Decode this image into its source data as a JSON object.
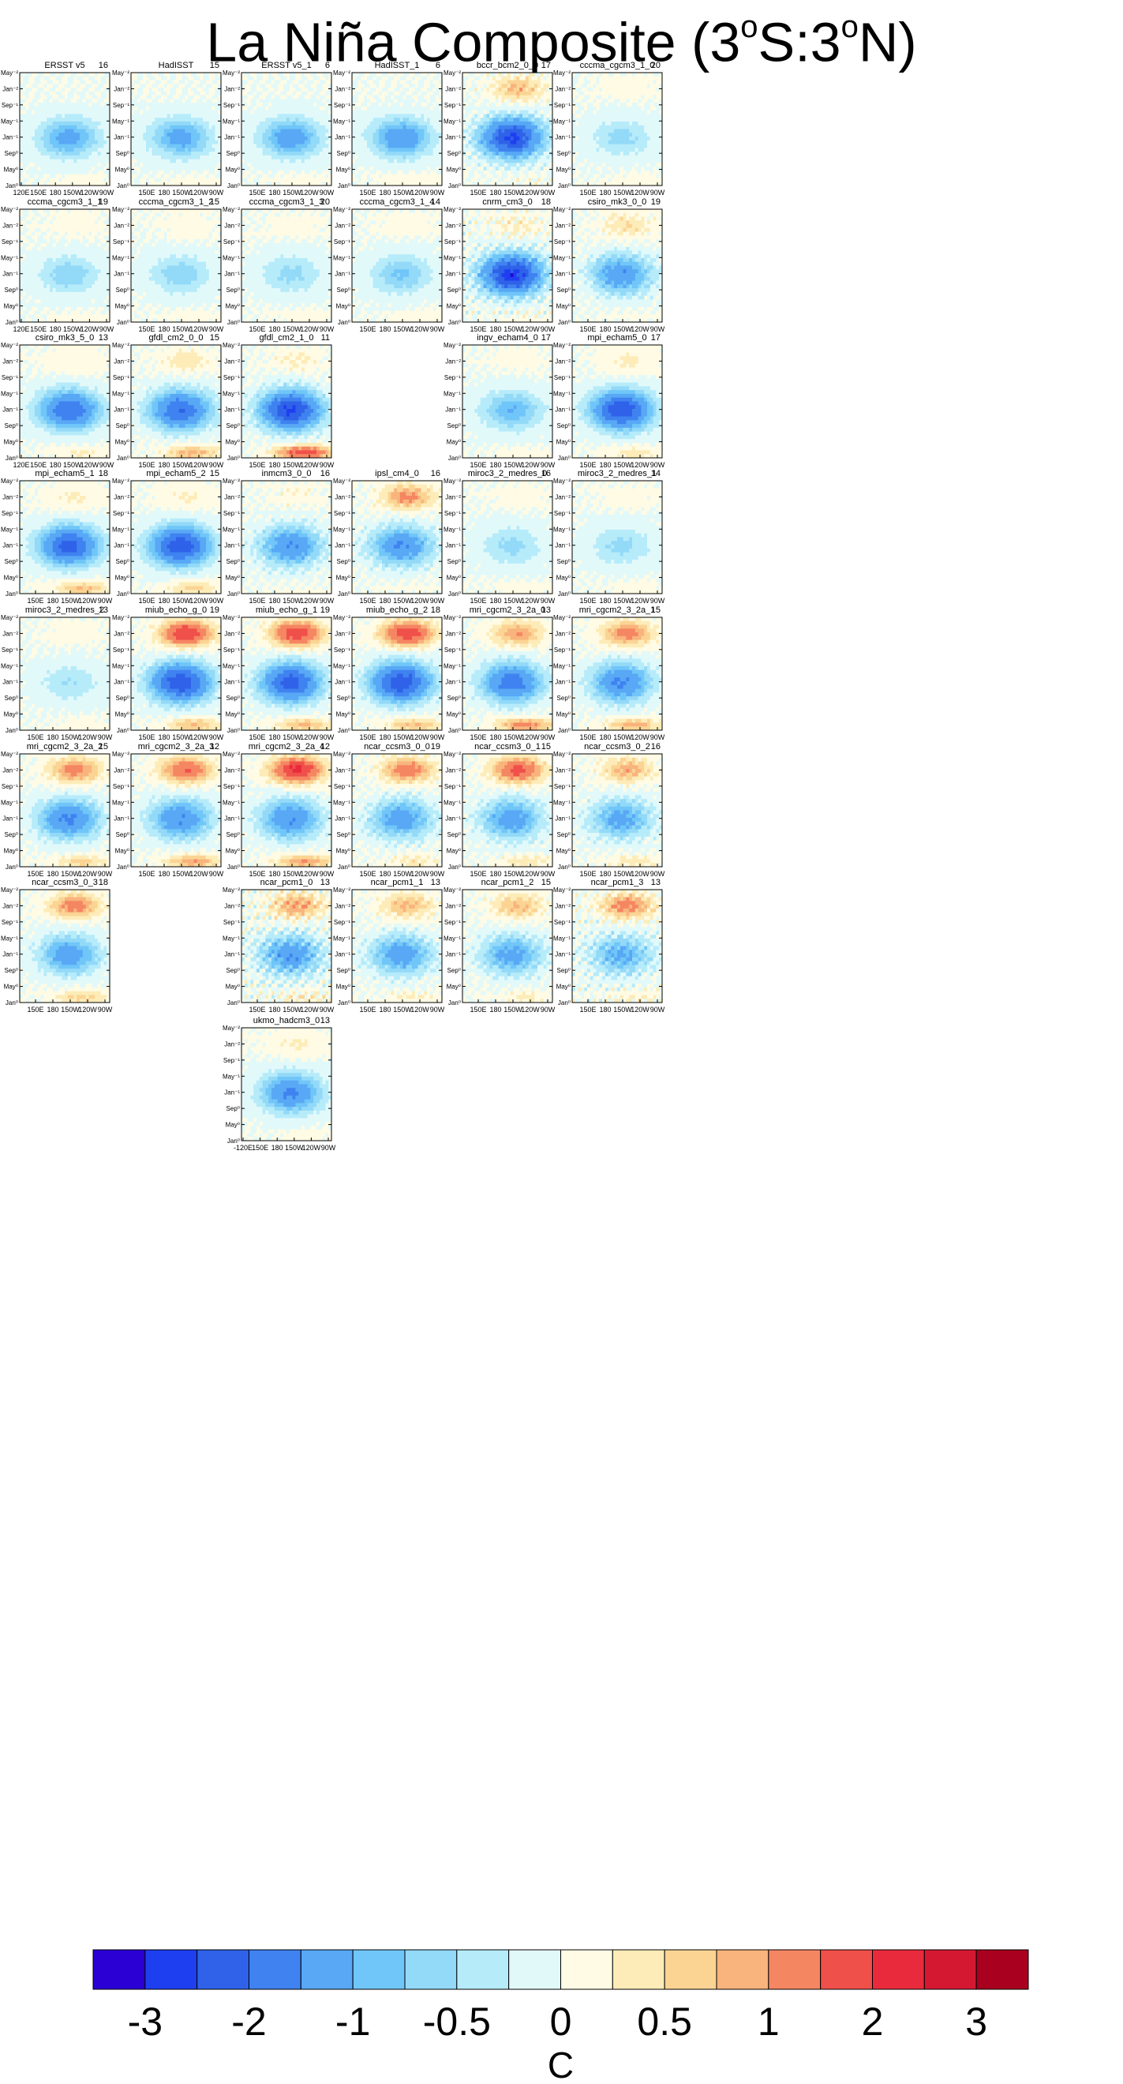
{
  "title_main": "La Niña Composite (3",
  "title_s": "S:3",
  "title_n": "N)",
  "title_deg": "o",
  "units": "C",
  "colors": [
    "#2a00d4",
    "#1e3ff0",
    "#2f62e8",
    "#3f82f0",
    "#58a8f5",
    "#70c6f8",
    "#93d9f8",
    "#b6ebfa",
    "#e2f9fa",
    "#fffbe4",
    "#fdecb8",
    "#fbd494",
    "#f8b47c",
    "#f58662",
    "#f0504a",
    "#e82a3c",
    "#d41832",
    "#a8001e"
  ],
  "colorbar_labels": [
    "-3",
    "-2",
    "-1",
    "-0.5",
    "0",
    "0.5",
    "1",
    "2",
    "3"
  ],
  "y_ticks": [
    "May⁻²",
    "Jan⁻²",
    "Sep⁻¹",
    "May⁻¹",
    "Jan⁻¹",
    "Sep⁰",
    "May⁰",
    "Jan⁰"
  ],
  "x_ticks_full": [
    "120E",
    "150E",
    "180",
    "150W",
    "120W",
    "90W"
  ],
  "x_ticks_short": [
    "150E",
    "180",
    "150W",
    "120W",
    "90W"
  ],
  "x_ticks_last": [
    "-120E",
    "150E",
    "180",
    "150W",
    "120W",
    "90W"
  ],
  "chart_data": {
    "type": "heatmap",
    "title": "La Niña Composite (3°S:3°N)",
    "colorbar_levels": [
      -3,
      -2.5,
      -2,
      -1.5,
      -1,
      -0.75,
      -0.5,
      -0.25,
      0,
      0.25,
      0.5,
      0.75,
      1,
      1.5,
      2,
      2.5,
      3
    ],
    "colorbar_unit": "C",
    "panels": [
      {
        "name": "ERSST v5",
        "n": "16",
        "pattern": [
          0,
          -1.2,
          0,
          0.1,
          0.1
        ]
      },
      {
        "name": "HadISST",
        "n": "15",
        "pattern": [
          0,
          -1.2,
          0,
          0.1,
          0.1
        ]
      },
      {
        "name": "ERSST v5_1",
        "n": "6",
        "pattern": [
          0,
          -1.3,
          0,
          0.1,
          0.1
        ]
      },
      {
        "name": "HadISST_1",
        "n": "6",
        "pattern": [
          0,
          -1.4,
          0,
          0.2,
          0.1
        ]
      },
      {
        "name": "bccr_bcm2_0_0",
        "n": "17",
        "pattern": [
          0,
          -2.6,
          0.8,
          0.1,
          0.4
        ]
      },
      {
        "name": "cccma_cgcm3_1_0",
        "n": "20",
        "pattern": [
          0,
          -0.6,
          0.1,
          0.1,
          0.1
        ]
      },
      {
        "name": "cccma_cgcm3_1_1",
        "n": "19",
        "pattern": [
          0,
          -0.7,
          0.1,
          0.1,
          0.1
        ]
      },
      {
        "name": "cccma_cgcm3_1_2",
        "n": "15",
        "pattern": [
          0,
          -0.7,
          0.1,
          0.1,
          0.1
        ]
      },
      {
        "name": "cccma_cgcm3_1_3",
        "n": "20",
        "pattern": [
          0,
          -0.6,
          0.1,
          0.1,
          0.1
        ]
      },
      {
        "name": "cccma_cgcm3_1_4",
        "n": "14",
        "pattern": [
          0,
          -0.8,
          0.1,
          0.1,
          0.1
        ]
      },
      {
        "name": "cnrm_cm3_0",
        "n": "18",
        "pattern": [
          0,
          -2.8,
          0.3,
          0.1,
          0.5
        ]
      },
      {
        "name": "csiro_mk3_0_0",
        "n": "19",
        "pattern": [
          0,
          -1.4,
          0.5,
          0.1,
          0.3
        ]
      },
      {
        "name": "csiro_mk3_5_0",
        "n": "13",
        "pattern": [
          0,
          -2.0,
          0.2,
          0.3,
          0.1
        ]
      },
      {
        "name": "gfdl_cm2_0_0",
        "n": "15",
        "pattern": [
          0,
          -2.0,
          0.4,
          0.9,
          0.2
        ]
      },
      {
        "name": "gfdl_cm2_1_0",
        "n": "11",
        "pattern": [
          0,
          -2.6,
          0.3,
          1.8,
          0.3
        ]
      },
      {
        "name": "ingv_echam4_0",
        "n": "17",
        "pattern": [
          0,
          -1.0,
          0.1,
          0.1,
          0.1
        ]
      },
      {
        "name": "mpi_echam5_0",
        "n": "17",
        "pattern": [
          0,
          -2.4,
          0.3,
          0.4,
          0.1
        ]
      },
      {
        "name": "mpi_echam5_1",
        "n": "18",
        "pattern": [
          0,
          -2.2,
          0.3,
          0.8,
          0.1
        ]
      },
      {
        "name": "mpi_echam5_2",
        "n": "15",
        "pattern": [
          0,
          -2.4,
          0.3,
          0.6,
          0.1
        ]
      },
      {
        "name": "inmcm3_0_0",
        "n": "16",
        "pattern": [
          0,
          -1.5,
          0.2,
          0.1,
          0.3
        ]
      },
      {
        "name": "ipsl_cm4_0",
        "n": "16",
        "pattern": [
          0,
          -1.5,
          1.1,
          0.1,
          0.3
        ]
      },
      {
        "name": "miroc3_2_medres_0",
        "n": "16",
        "pattern": [
          0,
          -0.6,
          0.1,
          0.1,
          0.1
        ]
      },
      {
        "name": "miroc3_2_medres_1",
        "n": "14",
        "pattern": [
          0,
          -0.6,
          0.1,
          0.1,
          0.1
        ]
      },
      {
        "name": "miroc3_2_medres_2",
        "n": "13",
        "pattern": [
          0,
          -0.5,
          0.1,
          0.1,
          0.1
        ]
      },
      {
        "name": "miub_echo_g_0",
        "n": "19",
        "pattern": [
          0,
          -2.4,
          2.0,
          0.8,
          0.2
        ]
      },
      {
        "name": "miub_echo_g_1",
        "n": "19",
        "pattern": [
          0,
          -2.2,
          1.9,
          0.8,
          0.2
        ]
      },
      {
        "name": "miub_echo_g_2",
        "n": "18",
        "pattern": [
          0,
          -2.4,
          1.9,
          0.8,
          0.2
        ]
      },
      {
        "name": "mri_cgcm2_3_2a_0",
        "n": "13",
        "pattern": [
          0,
          -1.8,
          1.0,
          1.2,
          0.2
        ]
      },
      {
        "name": "mri_cgcm2_3_2a_1",
        "n": "15",
        "pattern": [
          0,
          -1.6,
          1.2,
          0.9,
          0.2
        ]
      },
      {
        "name": "mri_cgcm2_3_2a_2",
        "n": "15",
        "pattern": [
          0,
          -1.6,
          1.2,
          0.6,
          0.2
        ]
      },
      {
        "name": "mri_cgcm2_3_2a_3",
        "n": "12",
        "pattern": [
          0,
          -1.5,
          1.5,
          1.0,
          0.2
        ]
      },
      {
        "name": "mri_cgcm2_3_2a_4",
        "n": "12",
        "pattern": [
          0,
          -1.5,
          2.2,
          1.0,
          0.2
        ]
      },
      {
        "name": "ncar_ccsm3_0_0",
        "n": "19",
        "pattern": [
          0,
          -1.3,
          1.3,
          0.4,
          0.3
        ]
      },
      {
        "name": "ncar_ccsm3_0_1",
        "n": "15",
        "pattern": [
          0,
          -1.3,
          1.7,
          0.4,
          0.3
        ]
      },
      {
        "name": "ncar_ccsm3_0_2",
        "n": "16",
        "pattern": [
          0,
          -1.2,
          0.9,
          0.4,
          0.3
        ]
      },
      {
        "name": "ncar_ccsm3_0_3",
        "n": "18",
        "pattern": [
          0,
          -1.3,
          1.2,
          0.6,
          0.2
        ]
      },
      {
        "name": "ncar_pcm1_0",
        "n": "13",
        "pattern": [
          0,
          -1.4,
          1.0,
          0.3,
          0.6
        ]
      },
      {
        "name": "ncar_pcm1_1",
        "n": "13",
        "pattern": [
          0,
          -1.3,
          0.8,
          0.3,
          0.3
        ]
      },
      {
        "name": "ncar_pcm1_2",
        "n": "15",
        "pattern": [
          0,
          -1.2,
          0.8,
          0.3,
          0.3
        ]
      },
      {
        "name": "ncar_pcm1_3",
        "n": "13",
        "pattern": [
          0,
          -1.1,
          1.2,
          0.3,
          0.5
        ]
      },
      {
        "name": "ukmo_hadcm3_0",
        "n": "13",
        "pattern": [
          0,
          -1.6,
          0.3,
          0.1,
          0.1
        ]
      }
    ]
  }
}
